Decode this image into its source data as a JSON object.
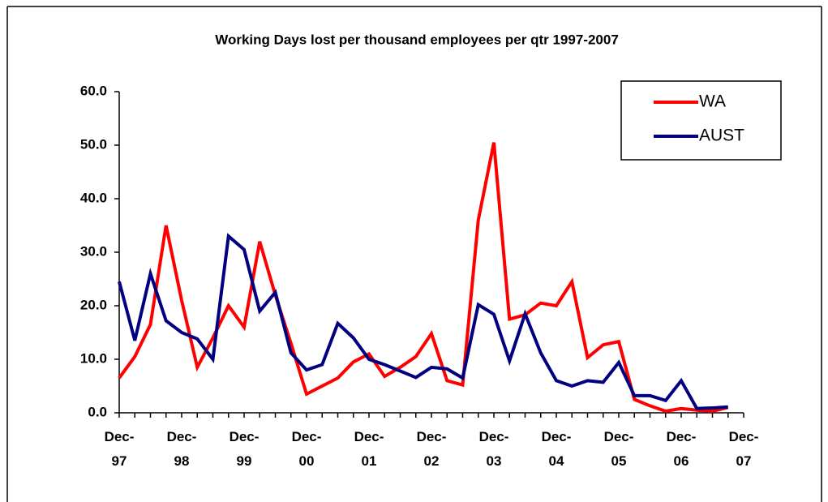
{
  "chart_data": {
    "type": "line",
    "title": "Working Days lost per thousand employees per qtr 1997-2007",
    "categories": [
      "Dec-97",
      null,
      null,
      null,
      "Dec-98",
      null,
      null,
      null,
      "Dec-99",
      null,
      null,
      null,
      "Dec-00",
      null,
      null,
      null,
      "Dec-01",
      null,
      null,
      null,
      "Dec-02",
      null,
      null,
      null,
      "Dec-03",
      null,
      null,
      null,
      "Dec-04",
      null,
      null,
      null,
      "Dec-05",
      null,
      null,
      null,
      "Dec-06",
      null,
      null,
      null,
      "Dec-07"
    ],
    "series": [
      {
        "name": "WA",
        "color": "#ff0000",
        "values": [
          6.5,
          10.5,
          16.5,
          35,
          21,
          8.5,
          14,
          20,
          16,
          32,
          22,
          13,
          3.5,
          5,
          6.5,
          9.5,
          11,
          6.8,
          8.5,
          10.5,
          14.8,
          6,
          5.2,
          36,
          50.5,
          17.5,
          18.3,
          20.5,
          20,
          24.5,
          10.3,
          12.7,
          13.3,
          2.5,
          1.3,
          0.3,
          0.8,
          0.5,
          0.3,
          1.0,
          null
        ]
      },
      {
        "name": "AUST",
        "color": "#000080",
        "values": [
          24.5,
          13.5,
          26,
          17.2,
          15,
          13.8,
          10,
          33,
          30.5,
          19,
          22.5,
          11.2,
          8,
          9,
          16.7,
          14,
          10,
          9,
          7.8,
          6.6,
          8.5,
          8.2,
          6.5,
          20.2,
          18.4,
          9.7,
          18.5,
          11.2,
          6,
          5,
          6,
          5.7,
          9.4,
          3.2,
          3.2,
          2.3,
          6,
          0.8,
          0.9,
          1.1,
          null
        ]
      }
    ],
    "ylim": [
      0,
      60
    ],
    "yticks": [
      {
        "value": 0,
        "label": "0.0"
      },
      {
        "value": 10,
        "label": "10.0"
      },
      {
        "value": 20,
        "label": "20.0"
      },
      {
        "value": 30,
        "label": "30.0"
      },
      {
        "value": 40,
        "label": "40.0"
      },
      {
        "value": 50,
        "label": "50.0"
      },
      {
        "value": 60,
        "label": "60.0"
      }
    ],
    "legend": "top-right"
  }
}
